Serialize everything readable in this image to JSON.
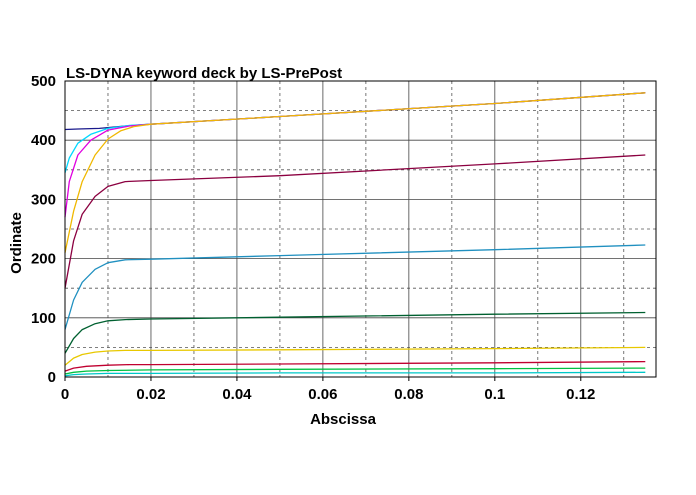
{
  "chart_data": {
    "type": "line",
    "title": "LS-DYNA keyword deck by LS-PrePost",
    "xlabel": "Abscissa",
    "ylabel": "Ordinate",
    "xlim": [
      0,
      0.1375
    ],
    "ylim": [
      0,
      500
    ],
    "x_ticks": [
      0,
      0.02,
      0.04,
      0.06,
      0.08,
      0.1,
      0.12
    ],
    "x_tick_labels": [
      "0",
      "0.02",
      "0.04",
      "0.06",
      "0.08",
      "0.1",
      "0.12"
    ],
    "y_ticks": [
      0,
      100,
      200,
      300,
      400,
      500
    ],
    "y_tick_labels": [
      "0",
      "100",
      "200",
      "300",
      "400",
      "500"
    ],
    "grid": true,
    "legend": "none",
    "series": [
      {
        "color": "#1a1a8c",
        "x": [
          0,
          0.003,
          0.008,
          0.014,
          0.02,
          0.05,
          0.1,
          0.135
        ],
        "y": [
          418,
          419,
          420,
          424,
          427,
          440,
          462,
          480
        ]
      },
      {
        "color": "#00d8ff",
        "x": [
          0,
          0.001,
          0.003,
          0.006,
          0.01,
          0.015,
          0.02,
          0.05,
          0.1,
          0.135
        ],
        "y": [
          345,
          370,
          395,
          410,
          420,
          425,
          427,
          440,
          462,
          480
        ]
      },
      {
        "color": "#e000e0",
        "x": [
          0,
          0.001,
          0.003,
          0.006,
          0.01,
          0.015,
          0.02,
          0.05,
          0.1,
          0.135
        ],
        "y": [
          270,
          330,
          375,
          400,
          417,
          424,
          427,
          440,
          462,
          480
        ]
      },
      {
        "color": "#f0b800",
        "x": [
          0,
          0.002,
          0.004,
          0.007,
          0.01,
          0.013,
          0.016,
          0.02,
          0.05,
          0.1,
          0.135
        ],
        "y": [
          210,
          280,
          330,
          375,
          402,
          416,
          423,
          427,
          440,
          462,
          480
        ]
      },
      {
        "color": "#8b0040",
        "x": [
          0,
          0.002,
          0.004,
          0.007,
          0.01,
          0.014,
          0.02,
          0.05,
          0.1,
          0.135
        ],
        "y": [
          150,
          230,
          275,
          305,
          322,
          330,
          332,
          340,
          360,
          375
        ]
      },
      {
        "color": "#2090c0",
        "x": [
          0,
          0.002,
          0.004,
          0.007,
          0.01,
          0.014,
          0.02,
          0.05,
          0.1,
          0.135
        ],
        "y": [
          80,
          130,
          160,
          182,
          193,
          198,
          199,
          205,
          215,
          223
        ]
      },
      {
        "color": "#006030",
        "x": [
          0,
          0.002,
          0.004,
          0.007,
          0.01,
          0.014,
          0.02,
          0.05,
          0.1,
          0.135
        ],
        "y": [
          40,
          65,
          80,
          90,
          95,
          97,
          98,
          101,
          106,
          109
        ]
      },
      {
        "color": "#e8c800",
        "x": [
          0,
          0.002,
          0.004,
          0.007,
          0.01,
          0.014,
          0.02,
          0.05,
          0.1,
          0.135
        ],
        "y": [
          20,
          32,
          38,
          42,
          44,
          45,
          45,
          46,
          48,
          50
        ]
      },
      {
        "color": "#c00030",
        "x": [
          0,
          0.002,
          0.005,
          0.01,
          0.015,
          0.02,
          0.05,
          0.1,
          0.135
        ],
        "y": [
          10,
          15,
          18,
          20,
          21,
          21,
          22,
          24,
          26
        ]
      },
      {
        "color": "#00c040",
        "x": [
          0,
          0.002,
          0.005,
          0.01,
          0.02,
          0.05,
          0.1,
          0.135
        ],
        "y": [
          5,
          8,
          10,
          11,
          12,
          13,
          14,
          15
        ]
      },
      {
        "color": "#00c8c8",
        "x": [
          0,
          0.002,
          0.005,
          0.01,
          0.02,
          0.05,
          0.1,
          0.135
        ],
        "y": [
          2,
          4,
          5,
          6,
          6,
          7,
          7,
          8
        ]
      }
    ]
  }
}
